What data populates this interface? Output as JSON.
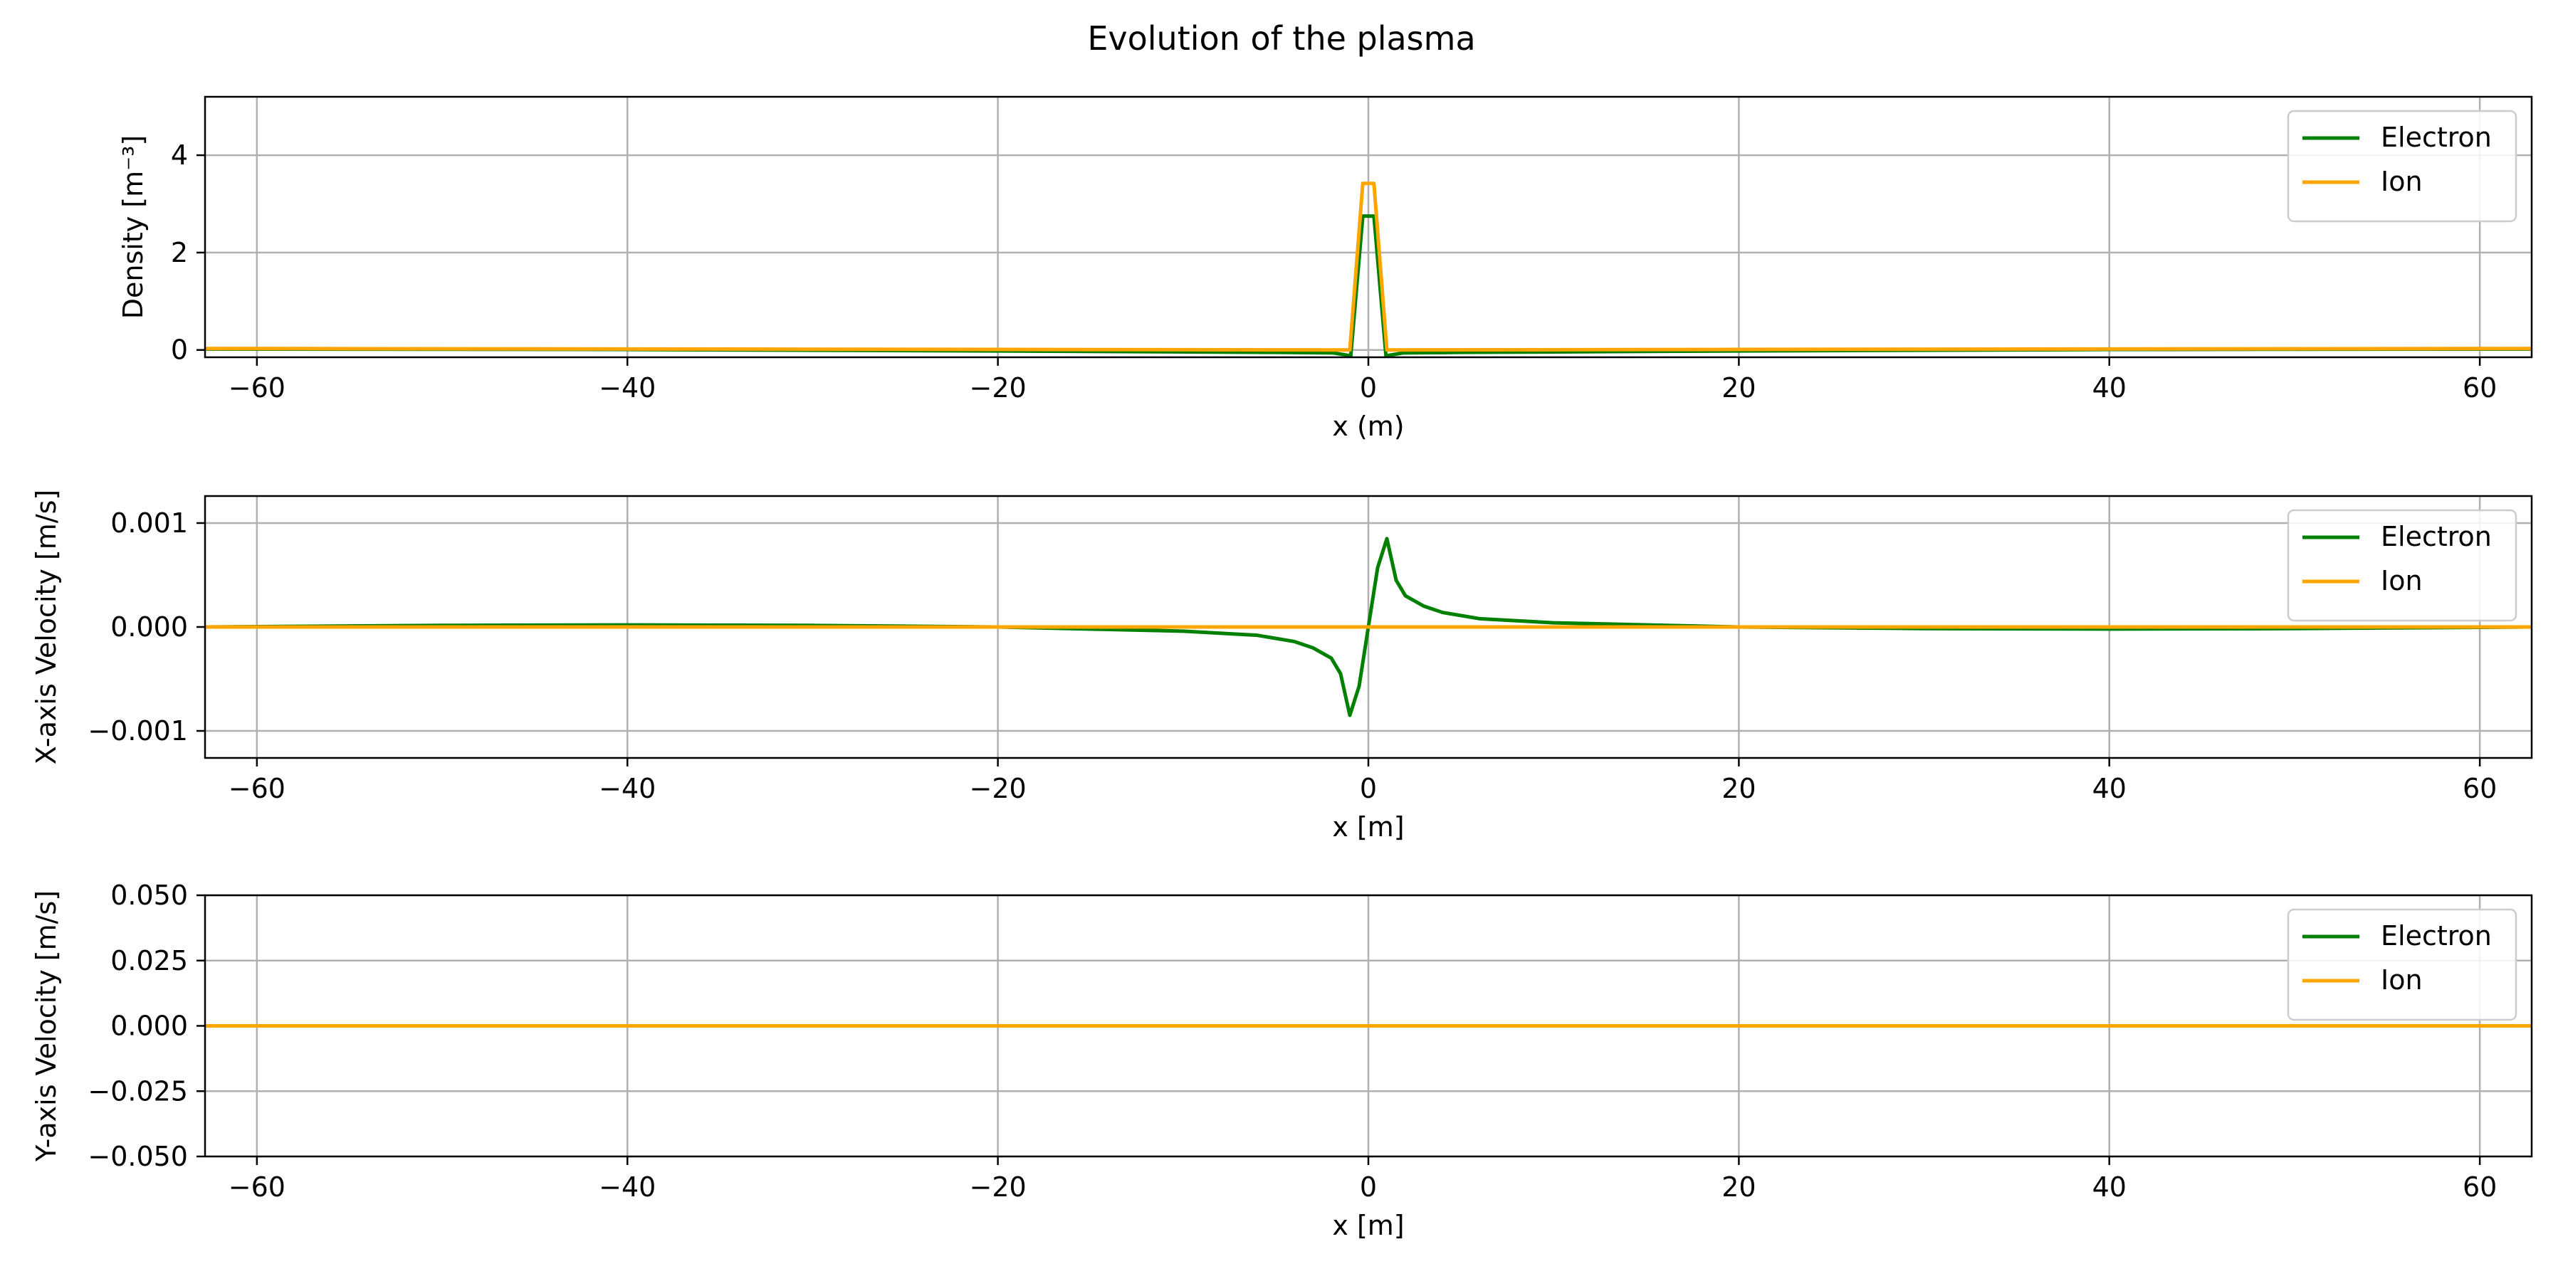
{
  "figure": {
    "title": "Evolution of the plasma"
  },
  "chart_data": [
    {
      "type": "line",
      "xlabel": "x (m)",
      "ylabel": "Density [m⁻³]",
      "xlim": [
        -62.8,
        62.8
      ],
      "ylim": [
        -0.15,
        5.2
      ],
      "xticks": [
        -60,
        -40,
        -20,
        0,
        20,
        40,
        60
      ],
      "xtick_labels": [
        "−60",
        "−40",
        "−20",
        "0",
        "20",
        "40",
        "60"
      ],
      "yticks": [
        0,
        2,
        4
      ],
      "ytick_labels": [
        "0",
        "2",
        "4"
      ],
      "grid": true,
      "legend_position": "top-right",
      "series": [
        {
          "name": "Electron",
          "color": "#008000",
          "points": [
            [
              -62.8,
              0.02
            ],
            [
              -40,
              0.01
            ],
            [
              -20,
              -0.02
            ],
            [
              -5,
              -0.05
            ],
            [
              -1.9,
              -0.06
            ],
            [
              -0.95,
              -0.12
            ],
            [
              -0.3,
              2.75
            ],
            [
              0.3,
              2.75
            ],
            [
              0.95,
              -0.12
            ],
            [
              1.9,
              -0.06
            ],
            [
              5,
              -0.05
            ],
            [
              20,
              -0.02
            ],
            [
              40,
              0.01
            ],
            [
              62.8,
              0.02
            ]
          ]
        },
        {
          "name": "Ion",
          "color": "#ffa500",
          "points": [
            [
              -62.8,
              0.03
            ],
            [
              -40,
              0.02
            ],
            [
              -20,
              0.01
            ],
            [
              -1,
              0.0
            ],
            [
              -0.3,
              3.42
            ],
            [
              0.3,
              3.42
            ],
            [
              1,
              0.0
            ],
            [
              20,
              0.01
            ],
            [
              40,
              0.02
            ],
            [
              62.8,
              0.03
            ]
          ]
        }
      ]
    },
    {
      "type": "line",
      "xlabel": "x [m]",
      "ylabel": "X-axis Velocity [m/s]",
      "xlim": [
        -62.8,
        62.8
      ],
      "ylim": [
        -0.00126,
        0.00126
      ],
      "xticks": [
        -60,
        -40,
        -20,
        0,
        20,
        40,
        60
      ],
      "xtick_labels": [
        "−60",
        "−40",
        "−20",
        "0",
        "20",
        "40",
        "60"
      ],
      "yticks": [
        -0.001,
        0.0,
        0.001
      ],
      "ytick_labels": [
        "−0.001",
        "0.000",
        "0.001"
      ],
      "grid": true,
      "legend_position": "top-right",
      "series": [
        {
          "name": "Electron",
          "color": "#008000",
          "points": [
            [
              -62.8,
              0.0
            ],
            [
              -50,
              1.5e-05
            ],
            [
              -40,
              2e-05
            ],
            [
              -30,
              1.5e-05
            ],
            [
              -20,
              0.0
            ],
            [
              -10,
              -4e-05
            ],
            [
              -6,
              -8e-05
            ],
            [
              -4,
              -0.00014
            ],
            [
              -3,
              -0.0002
            ],
            [
              -2,
              -0.0003
            ],
            [
              -1.5,
              -0.00045
            ],
            [
              -1,
              -0.00085
            ],
            [
              -0.5,
              -0.00057
            ],
            [
              0,
              0.0
            ],
            [
              0.5,
              0.00057
            ],
            [
              1,
              0.00085
            ],
            [
              1.5,
              0.00045
            ],
            [
              2,
              0.0003
            ],
            [
              3,
              0.0002
            ],
            [
              4,
              0.00014
            ],
            [
              6,
              8e-05
            ],
            [
              10,
              4e-05
            ],
            [
              20,
              0.0
            ],
            [
              30,
              -1.5e-05
            ],
            [
              40,
              -2e-05
            ],
            [
              50,
              -1.5e-05
            ],
            [
              62.8,
              0.0
            ]
          ]
        },
        {
          "name": "Ion",
          "color": "#ffa500",
          "points": [
            [
              -62.8,
              0.0
            ],
            [
              62.8,
              0.0
            ]
          ]
        }
      ]
    },
    {
      "type": "line",
      "xlabel": "x [m]",
      "ylabel": "Y-axis Velocity [m/s]",
      "xlim": [
        -62.8,
        62.8
      ],
      "ylim": [
        -0.05,
        0.05
      ],
      "xticks": [
        -60,
        -40,
        -20,
        0,
        20,
        40,
        60
      ],
      "xtick_labels": [
        "−60",
        "−40",
        "−20",
        "0",
        "20",
        "40",
        "60"
      ],
      "yticks": [
        -0.05,
        -0.025,
        0.0,
        0.025,
        0.05
      ],
      "ytick_labels": [
        "−0.050",
        "−0.025",
        "0.000",
        "0.025",
        "0.050"
      ],
      "grid": true,
      "legend_position": "top-right",
      "series": [
        {
          "name": "Electron",
          "color": "#008000",
          "points": [
            [
              -62.8,
              0.0
            ],
            [
              62.8,
              0.0
            ]
          ]
        },
        {
          "name": "Ion",
          "color": "#ffa500",
          "points": [
            [
              -62.8,
              0.0
            ],
            [
              62.8,
              0.0
            ]
          ]
        }
      ]
    }
  ]
}
